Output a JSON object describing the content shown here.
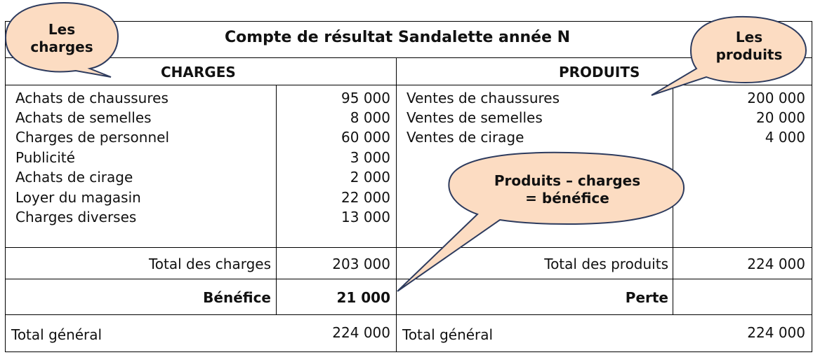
{
  "title": "Compte de résultat Sandalette année N",
  "charges": {
    "header": "CHARGES",
    "items": [
      {
        "label": "Achats de chaussures",
        "value": "95 000"
      },
      {
        "label": "Achats de semelles",
        "value": "8 000"
      },
      {
        "label": "Charges de personnel",
        "value": "60 000"
      },
      {
        "label": "Publicité",
        "value": "3 000"
      },
      {
        "label": "Achats de cirage",
        "value": "2 000"
      },
      {
        "label": "Loyer du magasin",
        "value": "22 000"
      },
      {
        "label": "Charges diverses",
        "value": "13 000"
      }
    ],
    "total_label": "Total des charges",
    "total_value": "203 000",
    "result_label": "Bénéfice",
    "result_value": "21 000",
    "grand_total_label": "Total général",
    "grand_total_value": "224 000"
  },
  "produits": {
    "header": "PRODUITS",
    "items": [
      {
        "label": "Ventes de chaussures",
        "value": "200 000"
      },
      {
        "label": "Ventes de semelles",
        "value": "20 000"
      },
      {
        "label": "Ventes de cirage",
        "value": "4 000"
      }
    ],
    "total_label": "Total des produits",
    "total_value": "224 000",
    "result_label": "Perte",
    "result_value": "",
    "grand_total_label": "Total général",
    "grand_total_value": "224 000"
  },
  "callouts": {
    "charges": [
      "Les",
      "charges"
    ],
    "produits": [
      "Les",
      "produits"
    ],
    "benefice": [
      "Produits – charges",
      "= bénéfice"
    ]
  },
  "colors": {
    "bubble_fill": "#fcdcc2",
    "bubble_stroke": "#2d3b5e"
  }
}
